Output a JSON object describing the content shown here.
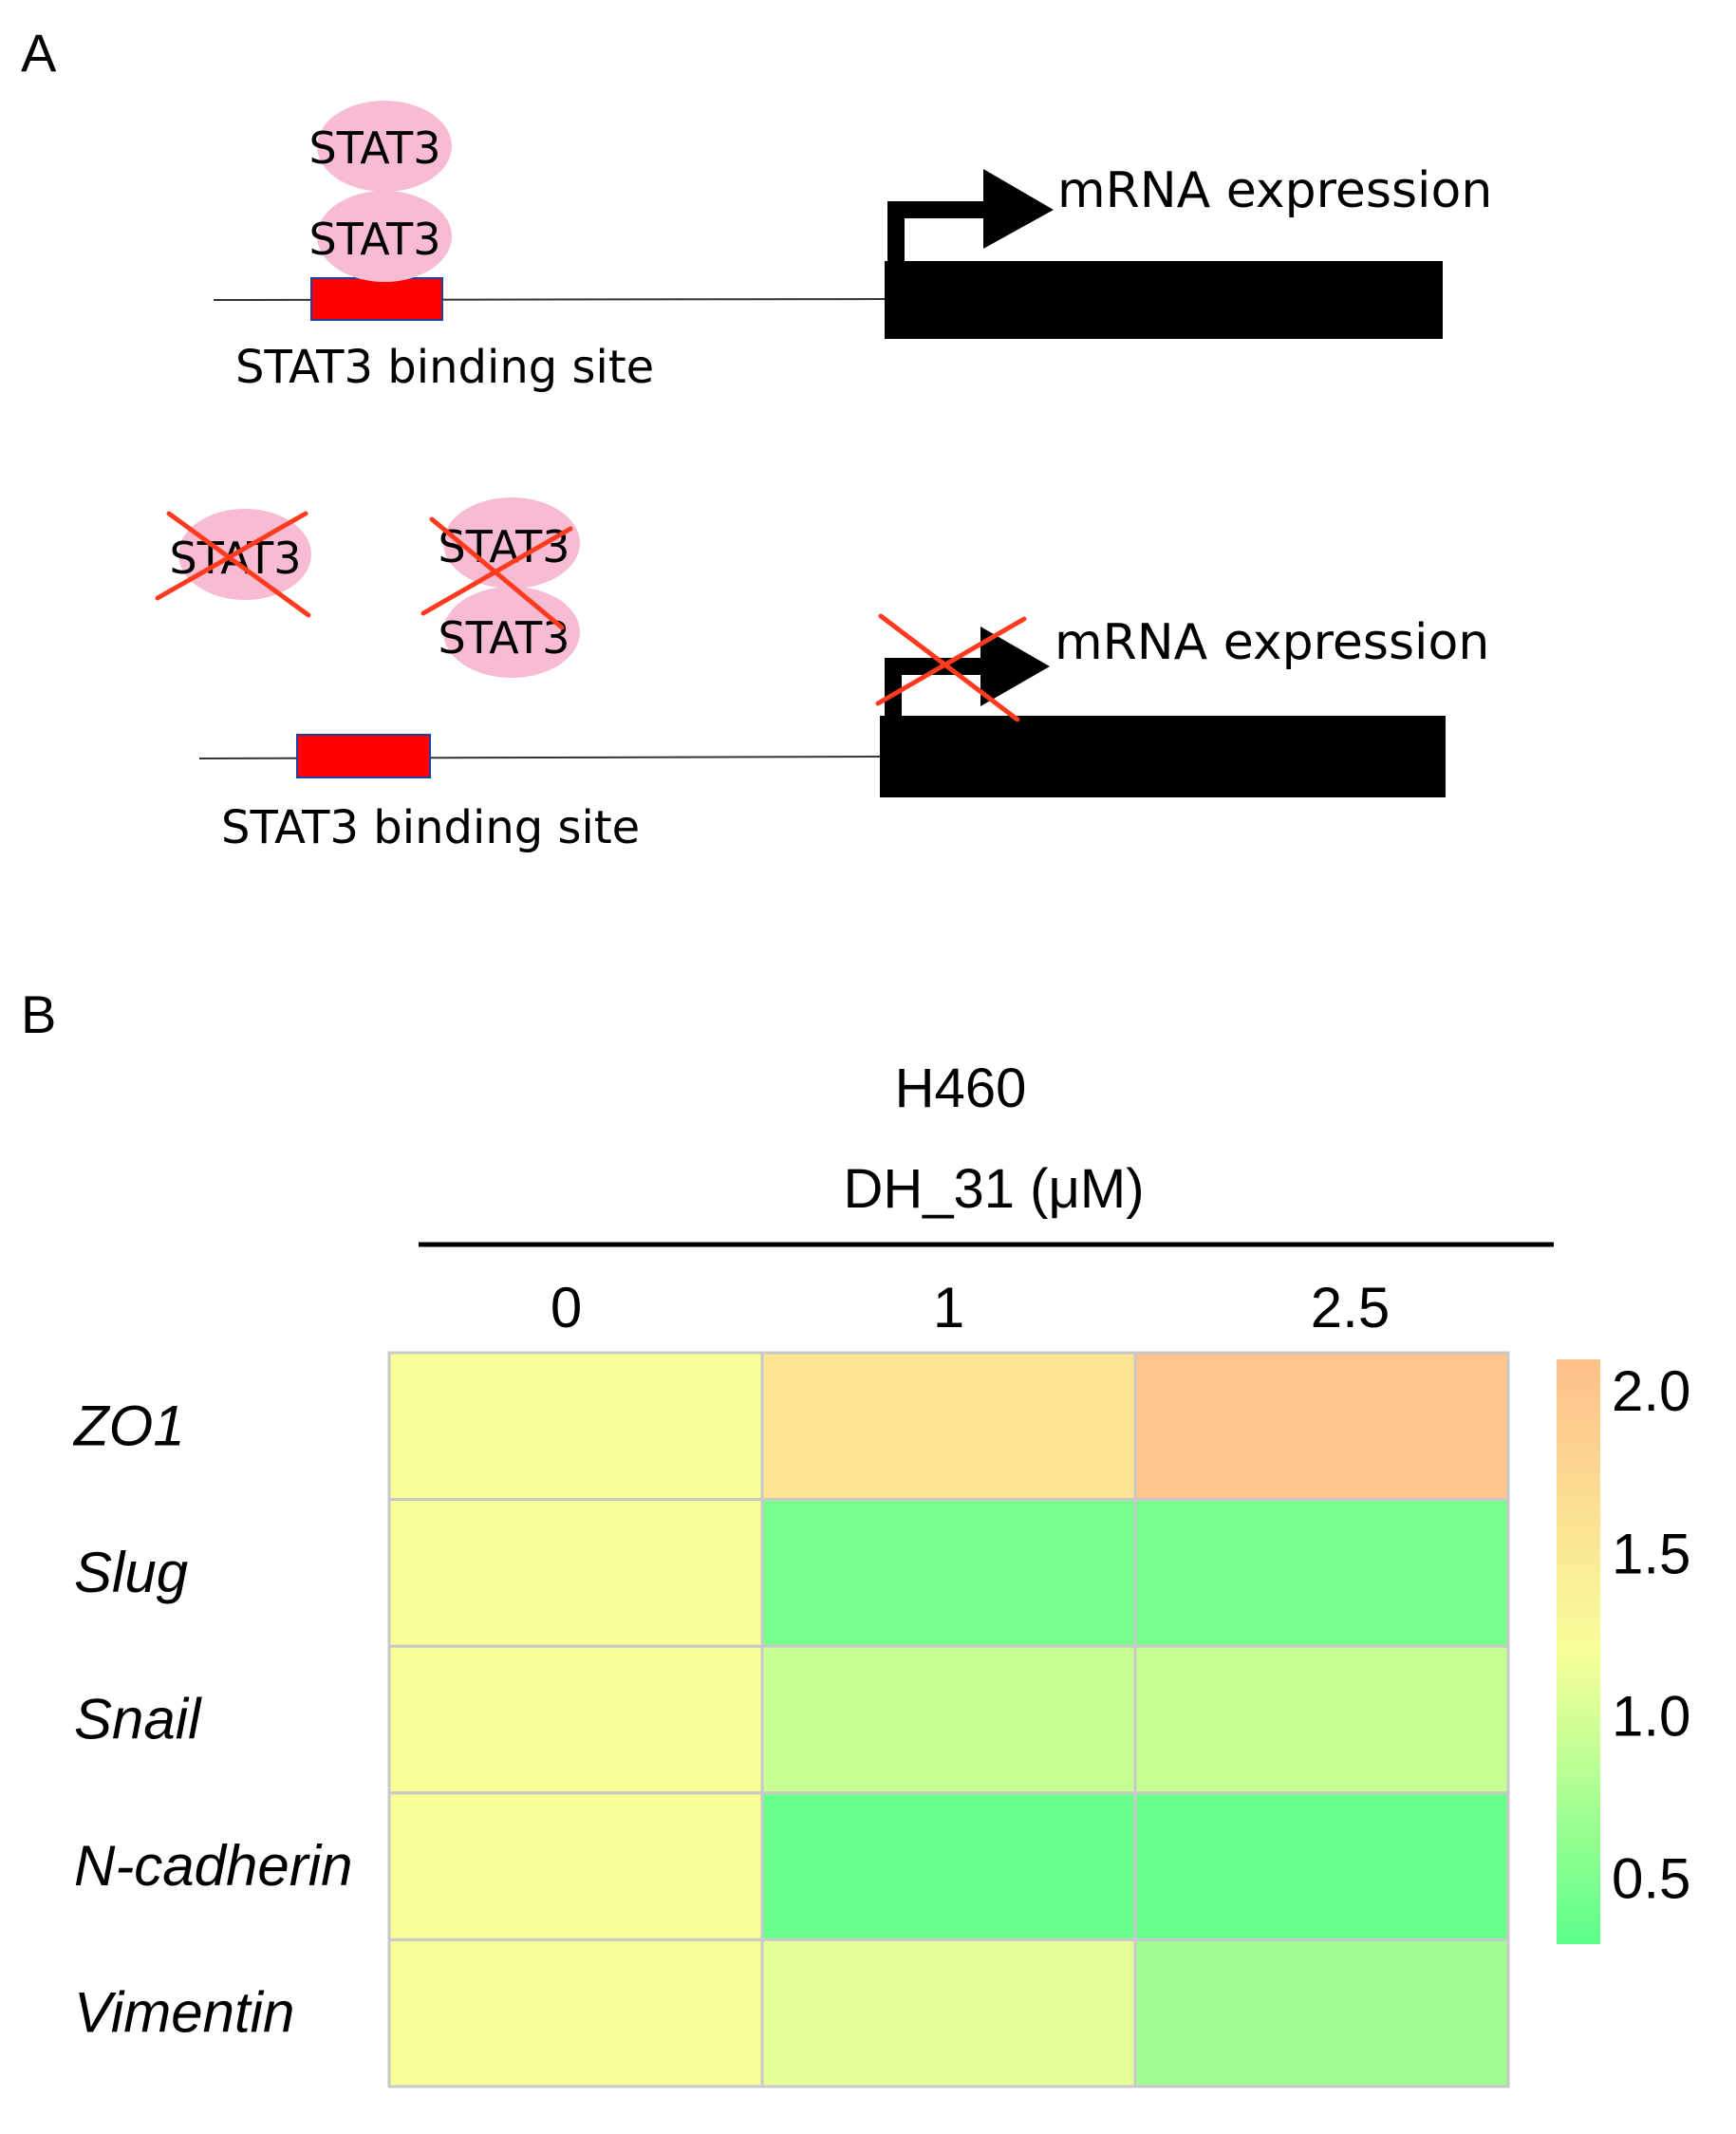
{
  "panel_a": {
    "label": "A",
    "active": {
      "dimer_top": "STAT3",
      "dimer_bottom": "STAT3",
      "site_label": "STAT3 binding site",
      "output_label": "mRNA expression"
    },
    "inhibited": {
      "monomer": "STAT3",
      "dimer_top": "STAT3",
      "dimer_bottom": "STAT3",
      "site_label": "STAT3 binding site",
      "output_label": "mRNA expression"
    },
    "colors": {
      "stat3_fill": "#f7bcd4",
      "binding_site": "#ff0000",
      "binding_site_border": "#2040a0",
      "gene": "#000000",
      "cross": "#ff3b1f"
    }
  },
  "panel_b": {
    "label": "B",
    "cell_line": "H460",
    "treatment": "DH_31 (μM)"
  },
  "chart_data": {
    "type": "heatmap",
    "x": [
      "0",
      "1",
      "2.5"
    ],
    "y": [
      "ZO1",
      "Slug",
      "Snail",
      "N-cadherin",
      "Vimentin"
    ],
    "values": [
      [
        1.0,
        1.45,
        2.0
      ],
      [
        1.0,
        0.42,
        0.42
      ],
      [
        1.0,
        0.78,
        0.78
      ],
      [
        1.0,
        0.36,
        0.36
      ],
      [
        1.0,
        0.92,
        0.6
      ]
    ],
    "colorbar": {
      "ticks": [
        "2.0",
        "1.5",
        "1.0",
        "0.5"
      ],
      "tick_values": [
        2.0,
        1.5,
        1.0,
        0.5
      ],
      "range": [
        0.3,
        2.1
      ],
      "colors": [
        "#5cff8c",
        "#f8ff99",
        "#ffbf8c"
      ]
    }
  }
}
